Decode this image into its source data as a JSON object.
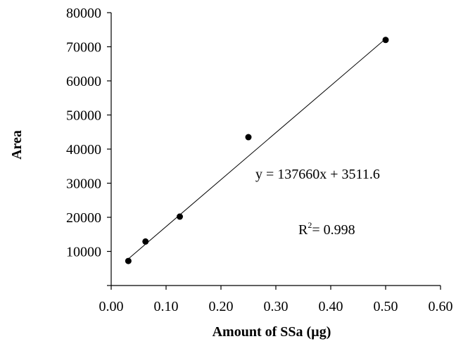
{
  "chart_data": {
    "type": "scatter",
    "title": "",
    "xlabel": "Amount of SSa (µg)",
    "ylabel": "Area",
    "xlim": [
      0,
      0.6
    ],
    "ylim": [
      0,
      80000
    ],
    "x_ticks": [
      "0.00",
      "0.10",
      "0.20",
      "0.30",
      "0.40",
      "0.50",
      "0.60"
    ],
    "y_ticks": [
      "10000",
      "20000",
      "30000",
      "40000",
      "50000",
      "60000",
      "70000",
      "80000"
    ],
    "grid": false,
    "legend": "none",
    "series": [
      {
        "points": [
          {
            "x": 0.03125,
            "y": 7200
          },
          {
            "x": 0.0625,
            "y": 12900
          },
          {
            "x": 0.125,
            "y": 20200
          },
          {
            "x": 0.25,
            "y": 43500
          },
          {
            "x": 0.5,
            "y": 72000
          }
        ],
        "color": "#000000"
      }
    ],
    "trendline": {
      "slope": 137660,
      "intercept": 3511.6,
      "x_range": [
        0.03125,
        0.5
      ]
    },
    "annotations": {
      "equation": "y = 137660x + 3511.6",
      "r2_prefix": "R",
      "r2_sup": "2",
      "r2_value": "= 0.998"
    }
  }
}
